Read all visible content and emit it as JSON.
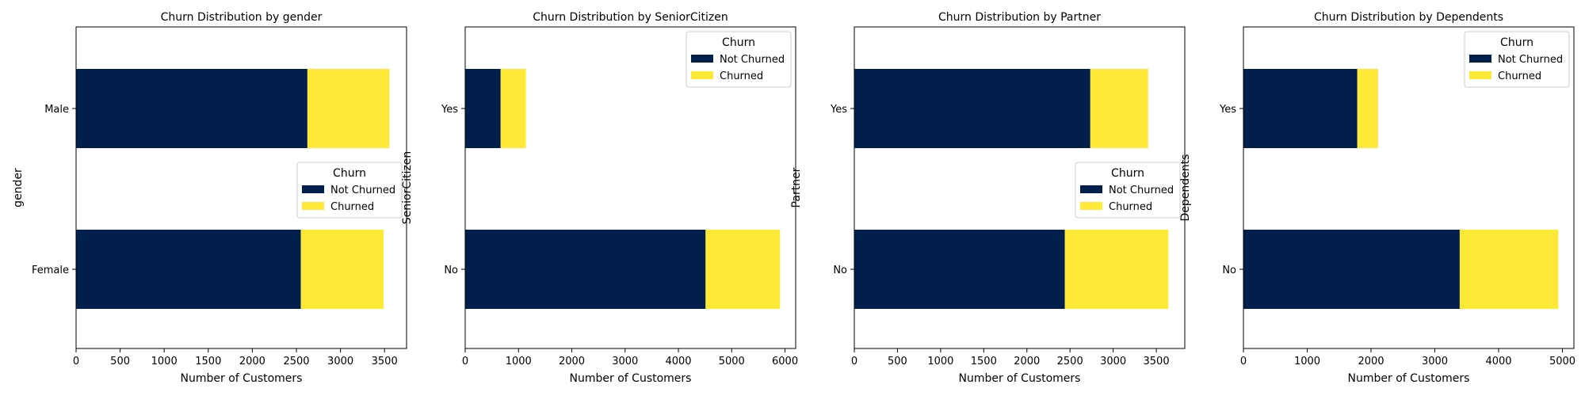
{
  "figure": {
    "background": "#ffffff"
  },
  "colors": {
    "not_churned": "#00204c",
    "churned": "#fee838",
    "axis": "#000000"
  },
  "chart_data": [
    {
      "type": "bar",
      "orientation": "horizontal",
      "stacked": true,
      "title": "Churn Distribution by gender",
      "xlabel": "Number of Customers",
      "ylabel": "gender",
      "categories": [
        "Female",
        "Male"
      ],
      "series": [
        {
          "name": "Not Churned",
          "values": [
            2550,
            2625
          ]
        },
        {
          "name": "Churned",
          "values": [
            940,
            930
          ]
        }
      ],
      "xlim": [
        0,
        3750
      ],
      "xticks": [
        0,
        500,
        1000,
        1500,
        2000,
        2500,
        3000,
        3500
      ],
      "legend": {
        "title": "Churn",
        "placement": "center-right"
      },
      "grid": false
    },
    {
      "type": "bar",
      "orientation": "horizontal",
      "stacked": true,
      "title": "Churn Distribution by SeniorCitizen",
      "xlabel": "Number of Customers",
      "ylabel": "SeniorCitizen",
      "categories": [
        "No",
        "Yes"
      ],
      "series": [
        {
          "name": "Not Churned",
          "values": [
            4510,
            665
          ]
        },
        {
          "name": "Churned",
          "values": [
            1395,
            475
          ]
        }
      ],
      "xlim": [
        0,
        6200
      ],
      "xticks": [
        0,
        1000,
        2000,
        3000,
        4000,
        5000,
        6000
      ],
      "legend": {
        "title": "Churn",
        "placement": "top-right"
      },
      "grid": false
    },
    {
      "type": "bar",
      "orientation": "horizontal",
      "stacked": true,
      "title": "Churn Distribution by Partner",
      "xlabel": "Number of Customers",
      "ylabel": "Partner",
      "categories": [
        "No",
        "Yes"
      ],
      "series": [
        {
          "name": "Not Churned",
          "values": [
            2440,
            2735
          ]
        },
        {
          "name": "Churned",
          "values": [
            1200,
            670
          ]
        }
      ],
      "xlim": [
        0,
        3830
      ],
      "xticks": [
        0,
        500,
        1000,
        1500,
        2000,
        2500,
        3000,
        3500
      ],
      "legend": {
        "title": "Churn",
        "placement": "center-right"
      },
      "grid": false
    },
    {
      "type": "bar",
      "orientation": "horizontal",
      "stacked": true,
      "title": "Churn Distribution by Dependents",
      "xlabel": "Number of Customers",
      "ylabel": "Dependents",
      "categories": [
        "No",
        "Yes"
      ],
      "series": [
        {
          "name": "Not Churned",
          "values": [
            3390,
            1785
          ]
        },
        {
          "name": "Churned",
          "values": [
            1545,
            325
          ]
        }
      ],
      "xlim": [
        0,
        5180
      ],
      "xticks": [
        0,
        1000,
        2000,
        3000,
        4000,
        5000
      ],
      "legend": {
        "title": "Churn",
        "placement": "top-right"
      },
      "grid": false
    }
  ]
}
